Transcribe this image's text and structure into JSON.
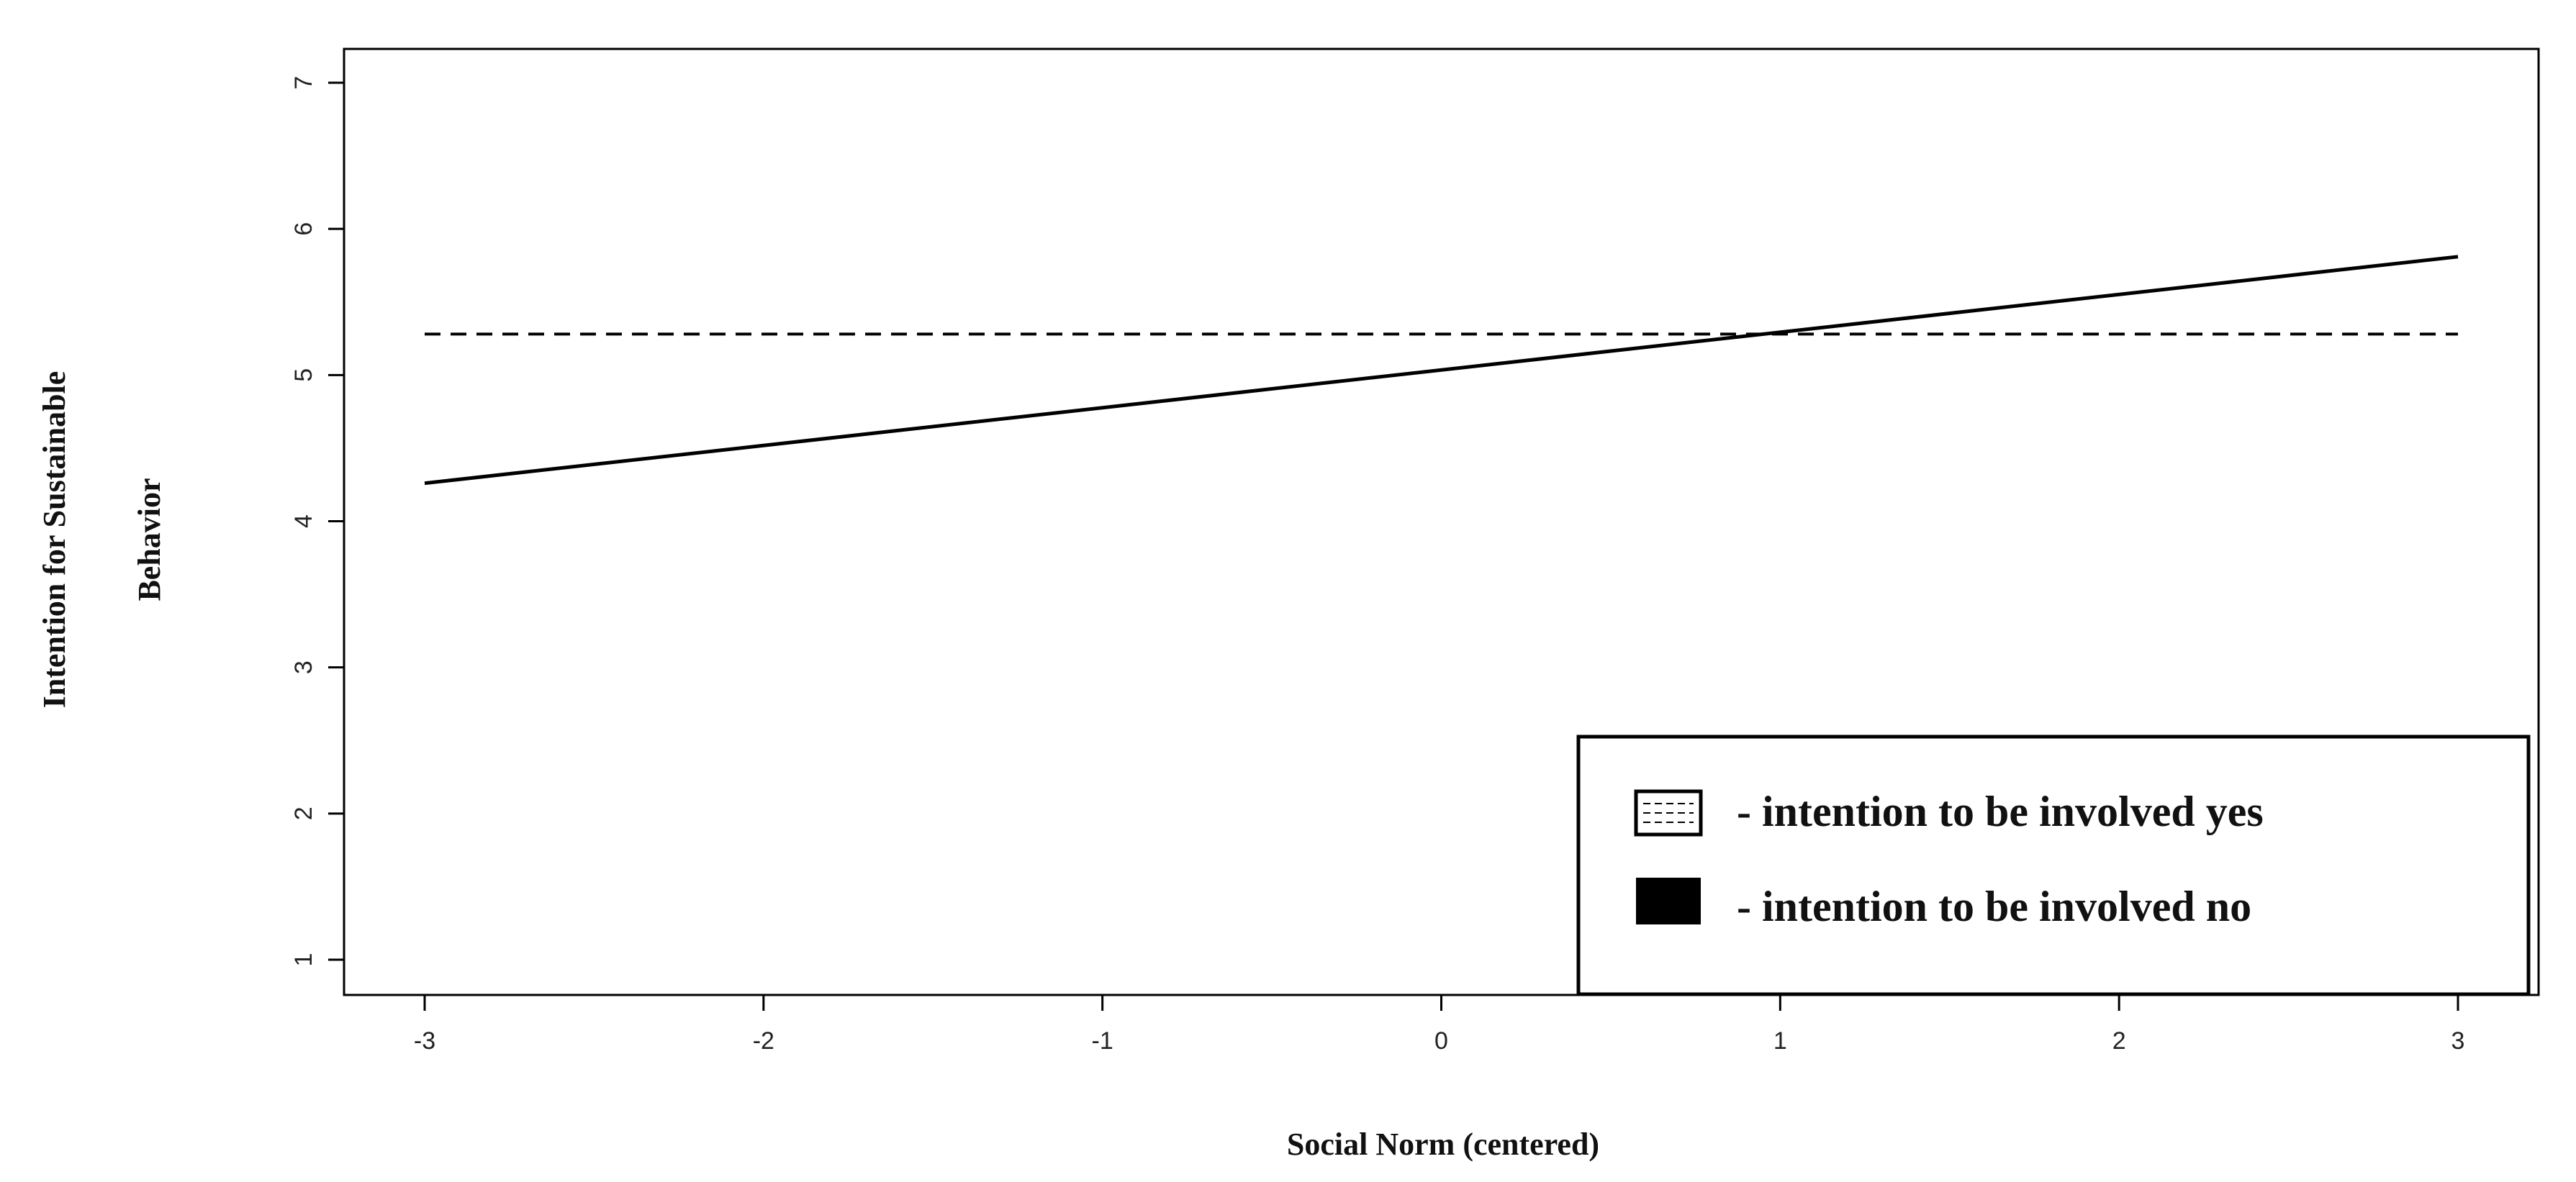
{
  "chart_data": {
    "type": "line",
    "xlabel": "Social Norm (centered)",
    "ylabel_lines": [
      "Intention for Sustainable",
      "Behavior"
    ],
    "xlim": [
      -3,
      3
    ],
    "ylim": [
      1,
      7
    ],
    "x_ticks": [
      -3,
      -2,
      -1,
      0,
      1,
      2,
      3
    ],
    "y_ticks": [
      1,
      2,
      3,
      4,
      5,
      6,
      7
    ],
    "grid": false,
    "legend_position": "bottom-right",
    "series": [
      {
        "name": "- intention to be involved yes",
        "style": "dashed",
        "color": "#000000",
        "x": [
          -3,
          3
        ],
        "y": [
          5.28,
          5.28
        ]
      },
      {
        "name": "- intention to be involved no",
        "style": "solid",
        "color": "#000000",
        "x": [
          -3,
          3
        ],
        "y": [
          4.26,
          5.81
        ]
      }
    ]
  }
}
